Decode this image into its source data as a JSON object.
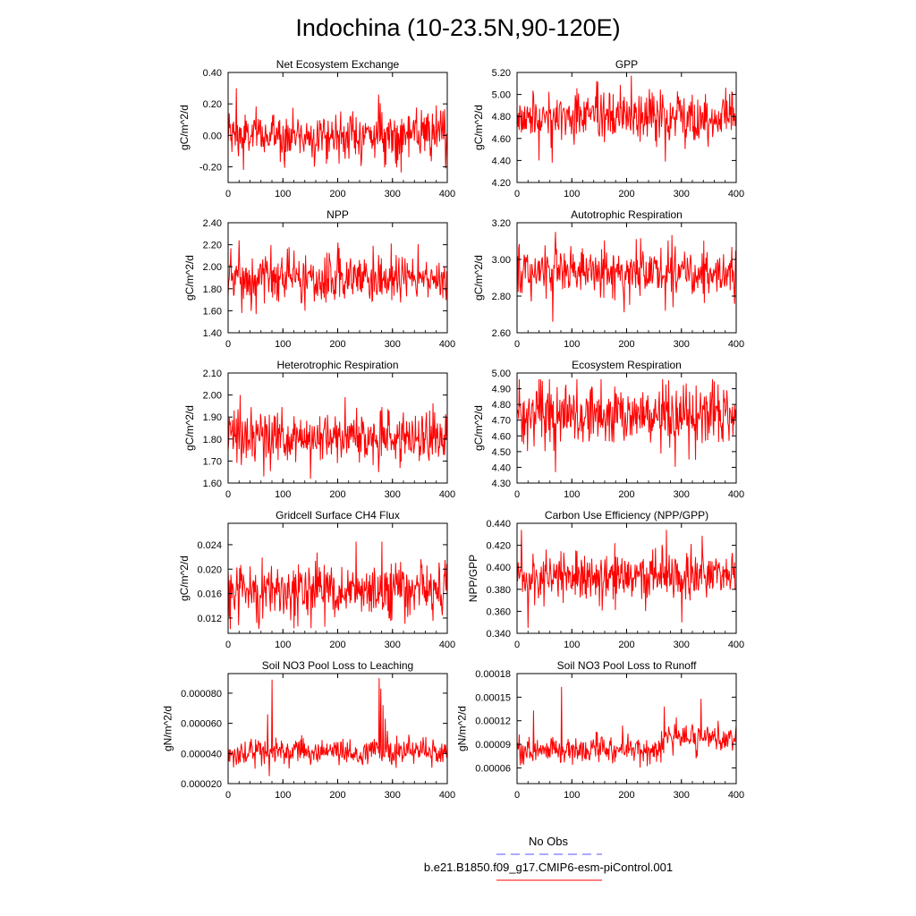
{
  "figure": {
    "title": "Indochina (10-23.5N,90-120E)",
    "legend": {
      "entries": [
        {
          "label": "No Obs",
          "color": "#5555ff",
          "dash": true
        },
        {
          "label": "b.e21.B1850.f09_g17.CMIP6-esm-piControl.001",
          "color": "#ff0000",
          "dash": false
        }
      ]
    },
    "series_color": "#ff0000"
  },
  "chart_data": [
    {
      "type": "line",
      "title": "Net Ecosystem Exchange",
      "ylabel": "gC/m^2/d",
      "xlabel": "",
      "xlim": [
        0,
        400
      ],
      "ylim": [
        -0.3,
        0.4
      ],
      "xticks": [
        "0",
        "100",
        "200",
        "300",
        "400"
      ],
      "yticks": [
        {
          "v": 0.4,
          "t": "0.40"
        },
        {
          "v": 0.2,
          "t": "0.20"
        },
        {
          "v": 0.0,
          "t": "0.00"
        },
        {
          "v": -0.2,
          "t": "-0.20"
        }
      ],
      "n": 400,
      "mean": 0.0,
      "std": 0.075,
      "min": -0.24,
      "max": 0.31,
      "spikes": [
        [
          15,
          0.3
        ],
        [
          28,
          -0.22
        ],
        [
          274,
          0.26
        ],
        [
          396,
          -0.21
        ]
      ]
    },
    {
      "type": "line",
      "title": "GPP",
      "ylabel": "gC/m^2/d",
      "xlabel": "",
      "xlim": [
        0,
        400
      ],
      "ylim": [
        4.2,
        5.2
      ],
      "xticks": [
        "0",
        "100",
        "200",
        "300",
        "400"
      ],
      "yticks": [
        {
          "v": 5.2,
          "t": "5.20"
        },
        {
          "v": 5.0,
          "t": "5.00"
        },
        {
          "v": 4.8,
          "t": "4.80"
        },
        {
          "v": 4.6,
          "t": "4.60"
        },
        {
          "v": 4.4,
          "t": "4.40"
        },
        {
          "v": 4.2,
          "t": "4.20"
        }
      ],
      "n": 400,
      "mean": 4.8,
      "std": 0.12,
      "min": 4.38,
      "max": 5.18,
      "spikes": [
        [
          208,
          5.17
        ],
        [
          40,
          4.4
        ],
        [
          64,
          4.38
        ],
        [
          270,
          4.39
        ]
      ]
    },
    {
      "type": "line",
      "title": "NPP",
      "ylabel": "gC/m^2/d",
      "xlabel": "",
      "xlim": [
        0,
        400
      ],
      "ylim": [
        1.4,
        2.4
      ],
      "xticks": [
        "0",
        "100",
        "200",
        "300",
        "400"
      ],
      "yticks": [
        {
          "v": 2.4,
          "t": "2.40"
        },
        {
          "v": 2.2,
          "t": "2.20"
        },
        {
          "v": 2.0,
          "t": "2.00"
        },
        {
          "v": 1.8,
          "t": "1.80"
        },
        {
          "v": 1.6,
          "t": "1.60"
        },
        {
          "v": 1.4,
          "t": "1.40"
        }
      ],
      "n": 400,
      "mean": 1.88,
      "std": 0.11,
      "min": 1.57,
      "max": 2.26,
      "spikes": [
        [
          20,
          2.24
        ],
        [
          200,
          2.22
        ],
        [
          25,
          1.58
        ],
        [
          140,
          1.6
        ]
      ]
    },
    {
      "type": "line",
      "title": "Autotrophic Respiration",
      "ylabel": "gC/m^2/d",
      "xlabel": "",
      "xlim": [
        0,
        400
      ],
      "ylim": [
        2.6,
        3.2
      ],
      "xticks": [
        "0",
        "100",
        "200",
        "300",
        "400"
      ],
      "yticks": [
        {
          "v": 3.2,
          "t": "3.20"
        },
        {
          "v": 3.0,
          "t": "3.00"
        },
        {
          "v": 2.8,
          "t": "2.80"
        },
        {
          "v": 2.6,
          "t": "2.60"
        }
      ],
      "n": 400,
      "mean": 2.93,
      "std": 0.07,
      "min": 2.66,
      "max": 3.15,
      "spikes": [
        [
          70,
          3.15
        ],
        [
          65,
          2.66
        ],
        [
          270,
          2.72
        ]
      ]
    },
    {
      "type": "line",
      "title": "Heterotrophic Respiration",
      "ylabel": "gC/m^2/d",
      "xlabel": "",
      "xlim": [
        0,
        400
      ],
      "ylim": [
        1.6,
        2.1
      ],
      "xticks": [
        "0",
        "100",
        "200",
        "300",
        "400"
      ],
      "yticks": [
        {
          "v": 2.1,
          "t": "2.10"
        },
        {
          "v": 2.0,
          "t": "2.00"
        },
        {
          "v": 1.9,
          "t": "1.90"
        },
        {
          "v": 1.8,
          "t": "1.80"
        },
        {
          "v": 1.7,
          "t": "1.70"
        },
        {
          "v": 1.6,
          "t": "1.60"
        }
      ],
      "n": 400,
      "mean": 1.81,
      "std": 0.06,
      "min": 1.62,
      "max": 2.0,
      "spikes": [
        [
          22,
          2.0
        ],
        [
          213,
          1.99
        ],
        [
          150,
          1.62
        ],
        [
          65,
          1.63
        ]
      ]
    },
    {
      "type": "line",
      "title": "Ecosystem Respiration",
      "ylabel": "gC/m^2/d",
      "xlabel": "",
      "xlim": [
        0,
        400
      ],
      "ylim": [
        4.3,
        5.0
      ],
      "xticks": [
        "0",
        "100",
        "200",
        "300",
        "400"
      ],
      "yticks": [
        {
          "v": 5.0,
          "t": "5.00"
        },
        {
          "v": 4.9,
          "t": "4.90"
        },
        {
          "v": 4.8,
          "t": "4.80"
        },
        {
          "v": 4.7,
          "t": "4.70"
        },
        {
          "v": 4.6,
          "t": "4.60"
        },
        {
          "v": 4.5,
          "t": "4.50"
        },
        {
          "v": 4.4,
          "t": "4.40"
        },
        {
          "v": 4.3,
          "t": "4.30"
        }
      ],
      "n": 400,
      "mean": 4.73,
      "std": 0.1,
      "min": 4.36,
      "max": 4.96,
      "spikes": [
        [
          70,
          4.37
        ],
        [
          40,
          4.96
        ],
        [
          265,
          4.96
        ]
      ]
    },
    {
      "type": "line",
      "title": "Gridcell Surface CH4 Flux",
      "ylabel": "gC/m^2/d",
      "xlabel": "",
      "xlim": [
        0,
        400
      ],
      "ylim": [
        0.0095,
        0.0275
      ],
      "xticks": [
        "0",
        "100",
        "200",
        "300",
        "400"
      ],
      "yticks": [
        {
          "v": 0.024,
          "t": "0.024"
        },
        {
          "v": 0.02,
          "t": "0.020"
        },
        {
          "v": 0.016,
          "t": "0.016"
        },
        {
          "v": 0.012,
          "t": "0.012"
        }
      ],
      "n": 400,
      "mean": 0.0165,
      "std": 0.0023,
      "min": 0.0102,
      "max": 0.0245,
      "spikes": [
        [
          233,
          0.0245
        ],
        [
          395,
          0.0215
        ],
        [
          120,
          0.0103
        ]
      ]
    },
    {
      "type": "line",
      "title": "Carbon Use Efficiency (NPP/GPP)",
      "ylabel": "NPP/GPP",
      "xlabel": "",
      "xlim": [
        0,
        400
      ],
      "ylim": [
        0.34,
        0.44
      ],
      "xticks": [
        "0",
        "100",
        "200",
        "300",
        "400"
      ],
      "yticks": [
        {
          "v": 0.44,
          "t": "0.440"
        },
        {
          "v": 0.42,
          "t": "0.420"
        },
        {
          "v": 0.4,
          "t": "0.400"
        },
        {
          "v": 0.38,
          "t": "0.380"
        },
        {
          "v": 0.36,
          "t": "0.360"
        },
        {
          "v": 0.34,
          "t": "0.340"
        }
      ],
      "n": 400,
      "mean": 0.391,
      "std": 0.012,
      "min": 0.345,
      "max": 0.434,
      "spikes": [
        [
          272,
          0.434
        ],
        [
          20,
          0.345
        ],
        [
          300,
          0.35
        ]
      ]
    },
    {
      "type": "line",
      "title": "Soil NO3 Pool Loss to Leaching",
      "ylabel": "gN/m^2/d",
      "xlabel": "",
      "xlim": [
        0,
        400
      ],
      "ylim": [
        2e-05,
        9.3e-05
      ],
      "xticks": [
        "0",
        "100",
        "200",
        "300",
        "400"
      ],
      "yticks": [
        {
          "v": 8e-05,
          "t": "0.000080"
        },
        {
          "v": 6e-05,
          "t": "0.000060"
        },
        {
          "v": 4e-05,
          "t": "0.000040"
        },
        {
          "v": 2e-05,
          "t": "0.000020"
        }
      ],
      "n": 400,
      "mean": 4.1e-05,
      "std": 4.5e-06,
      "min": 2.5e-05,
      "max": 9e-05,
      "spikes": [
        [
          80,
          8.9e-05
        ],
        [
          275,
          9e-05
        ],
        [
          278,
          8.3e-05
        ],
        [
          282,
          7.2e-05
        ],
        [
          286,
          6.3e-05
        ],
        [
          290,
          5.5e-05
        ],
        [
          72,
          6.6e-05
        ],
        [
          75,
          2.5e-05
        ]
      ]
    },
    {
      "type": "line",
      "title": "Soil NO3 Pool Loss to Runoff",
      "ylabel": "gN/m^2/d",
      "xlabel": "",
      "xlim": [
        0,
        400
      ],
      "ylim": [
        4e-05,
        0.00018
      ],
      "xticks": [
        "0",
        "100",
        "200",
        "300",
        "400"
      ],
      "yticks": [
        {
          "v": 0.00018,
          "t": "0.00018"
        },
        {
          "v": 0.00015,
          "t": "0.00015"
        },
        {
          "v": 0.00012,
          "t": "0.00012"
        },
        {
          "v": 9e-05,
          "t": "0.00009"
        },
        {
          "v": 6e-05,
          "t": "0.00006"
        }
      ],
      "n": 400,
      "mean": 8.3e-05,
      "std": 8.5e-06,
      "min": 5.7e-05,
      "max": 0.000163,
      "spikes": [
        [
          81,
          0.000163
        ],
        [
          30,
          0.000133
        ],
        [
          335,
          0.000148
        ],
        [
          268,
          0.000138
        ]
      ],
      "level_shifts": [
        [
          268,
          400,
          1.5e-05
        ]
      ]
    }
  ]
}
